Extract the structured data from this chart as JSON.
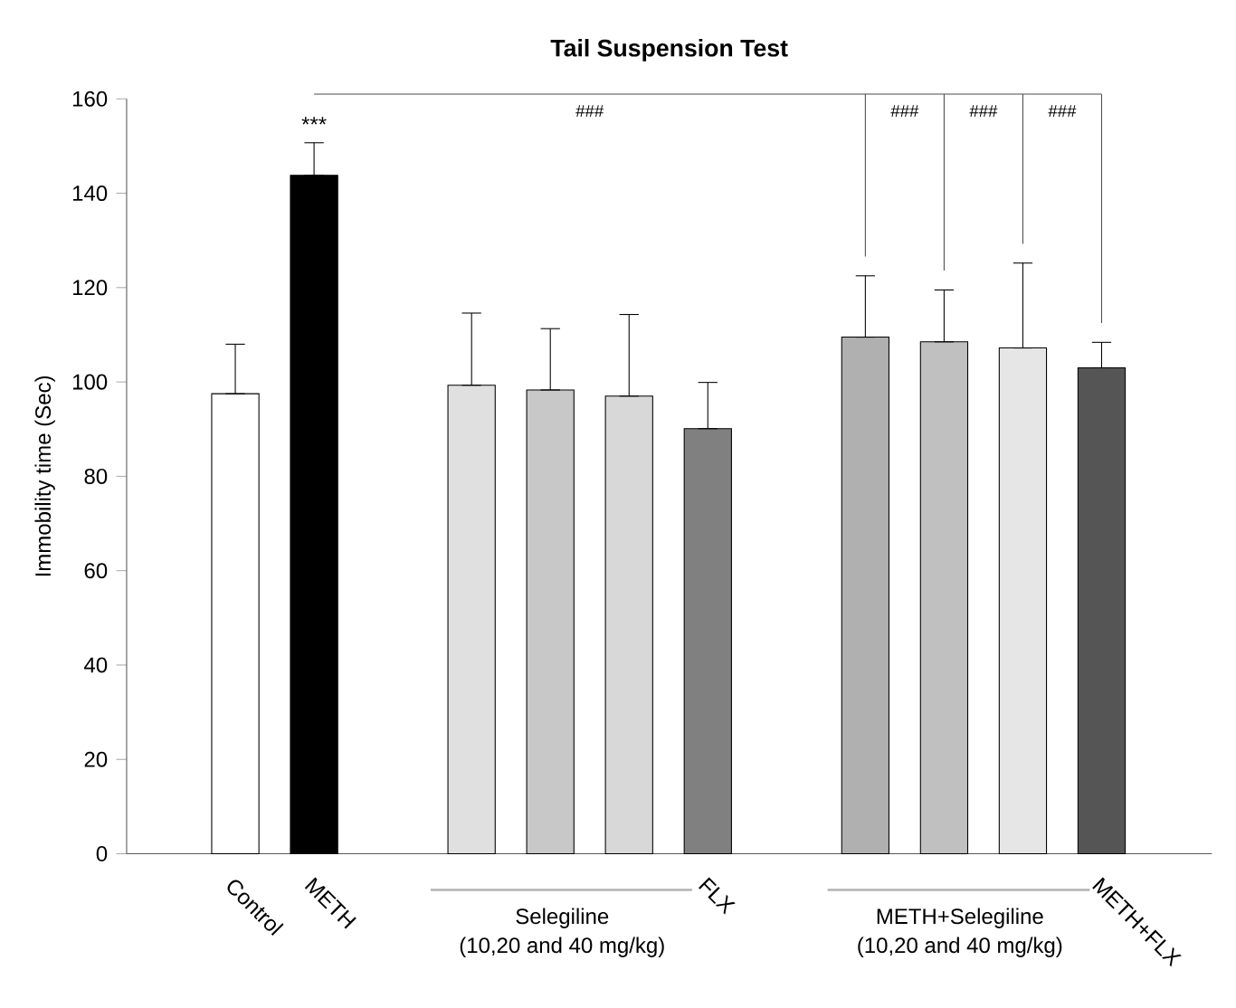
{
  "chart_data": {
    "type": "bar",
    "title": "Tail Suspension Test",
    "ylabel": "Immobility time (Sec)",
    "categories": [
      "Control",
      "METH",
      null,
      null,
      null,
      null,
      "FLX",
      null,
      null,
      null,
      null,
      "METH+FLX"
    ],
    "values": [
      97.5,
      143.8,
      null,
      99.3,
      98.3,
      97,
      90.1,
      null,
      109.5,
      108.5,
      107.2,
      103
    ],
    "errors": [
      [
        97.5,
        108
      ],
      [
        143.8,
        150.7
      ],
      null,
      [
        99.3,
        114.6
      ],
      [
        98.3,
        111.3
      ],
      [
        97,
        114.3
      ],
      [
        90.1,
        99.9
      ],
      null,
      [
        109.5,
        122.5
      ],
      [
        108.5,
        119.5
      ],
      [
        107.2,
        125.2
      ],
      [
        103,
        108.4
      ]
    ],
    "colors": [
      "#ffffff",
      "#000000",
      null,
      "#e0e0e0",
      "#c8c8c8",
      "#d8d8d8",
      "#808080",
      null,
      "#b0b0b0",
      "#c0c0c0",
      "#e6e6e6",
      "#555555"
    ],
    "ylim": [
      0,
      160
    ],
    "yticks": [
      0,
      20,
      40,
      60,
      80,
      100,
      120,
      140,
      160
    ],
    "grid": false,
    "legend": false,
    "annotations": [
      "***",
      "###",
      "###",
      "###",
      "###",
      "Selegiline",
      "(10,20 and 40 mg/kg)",
      "METH+Selegiline",
      "(10,20 and 40 mg/kg)"
    ]
  }
}
